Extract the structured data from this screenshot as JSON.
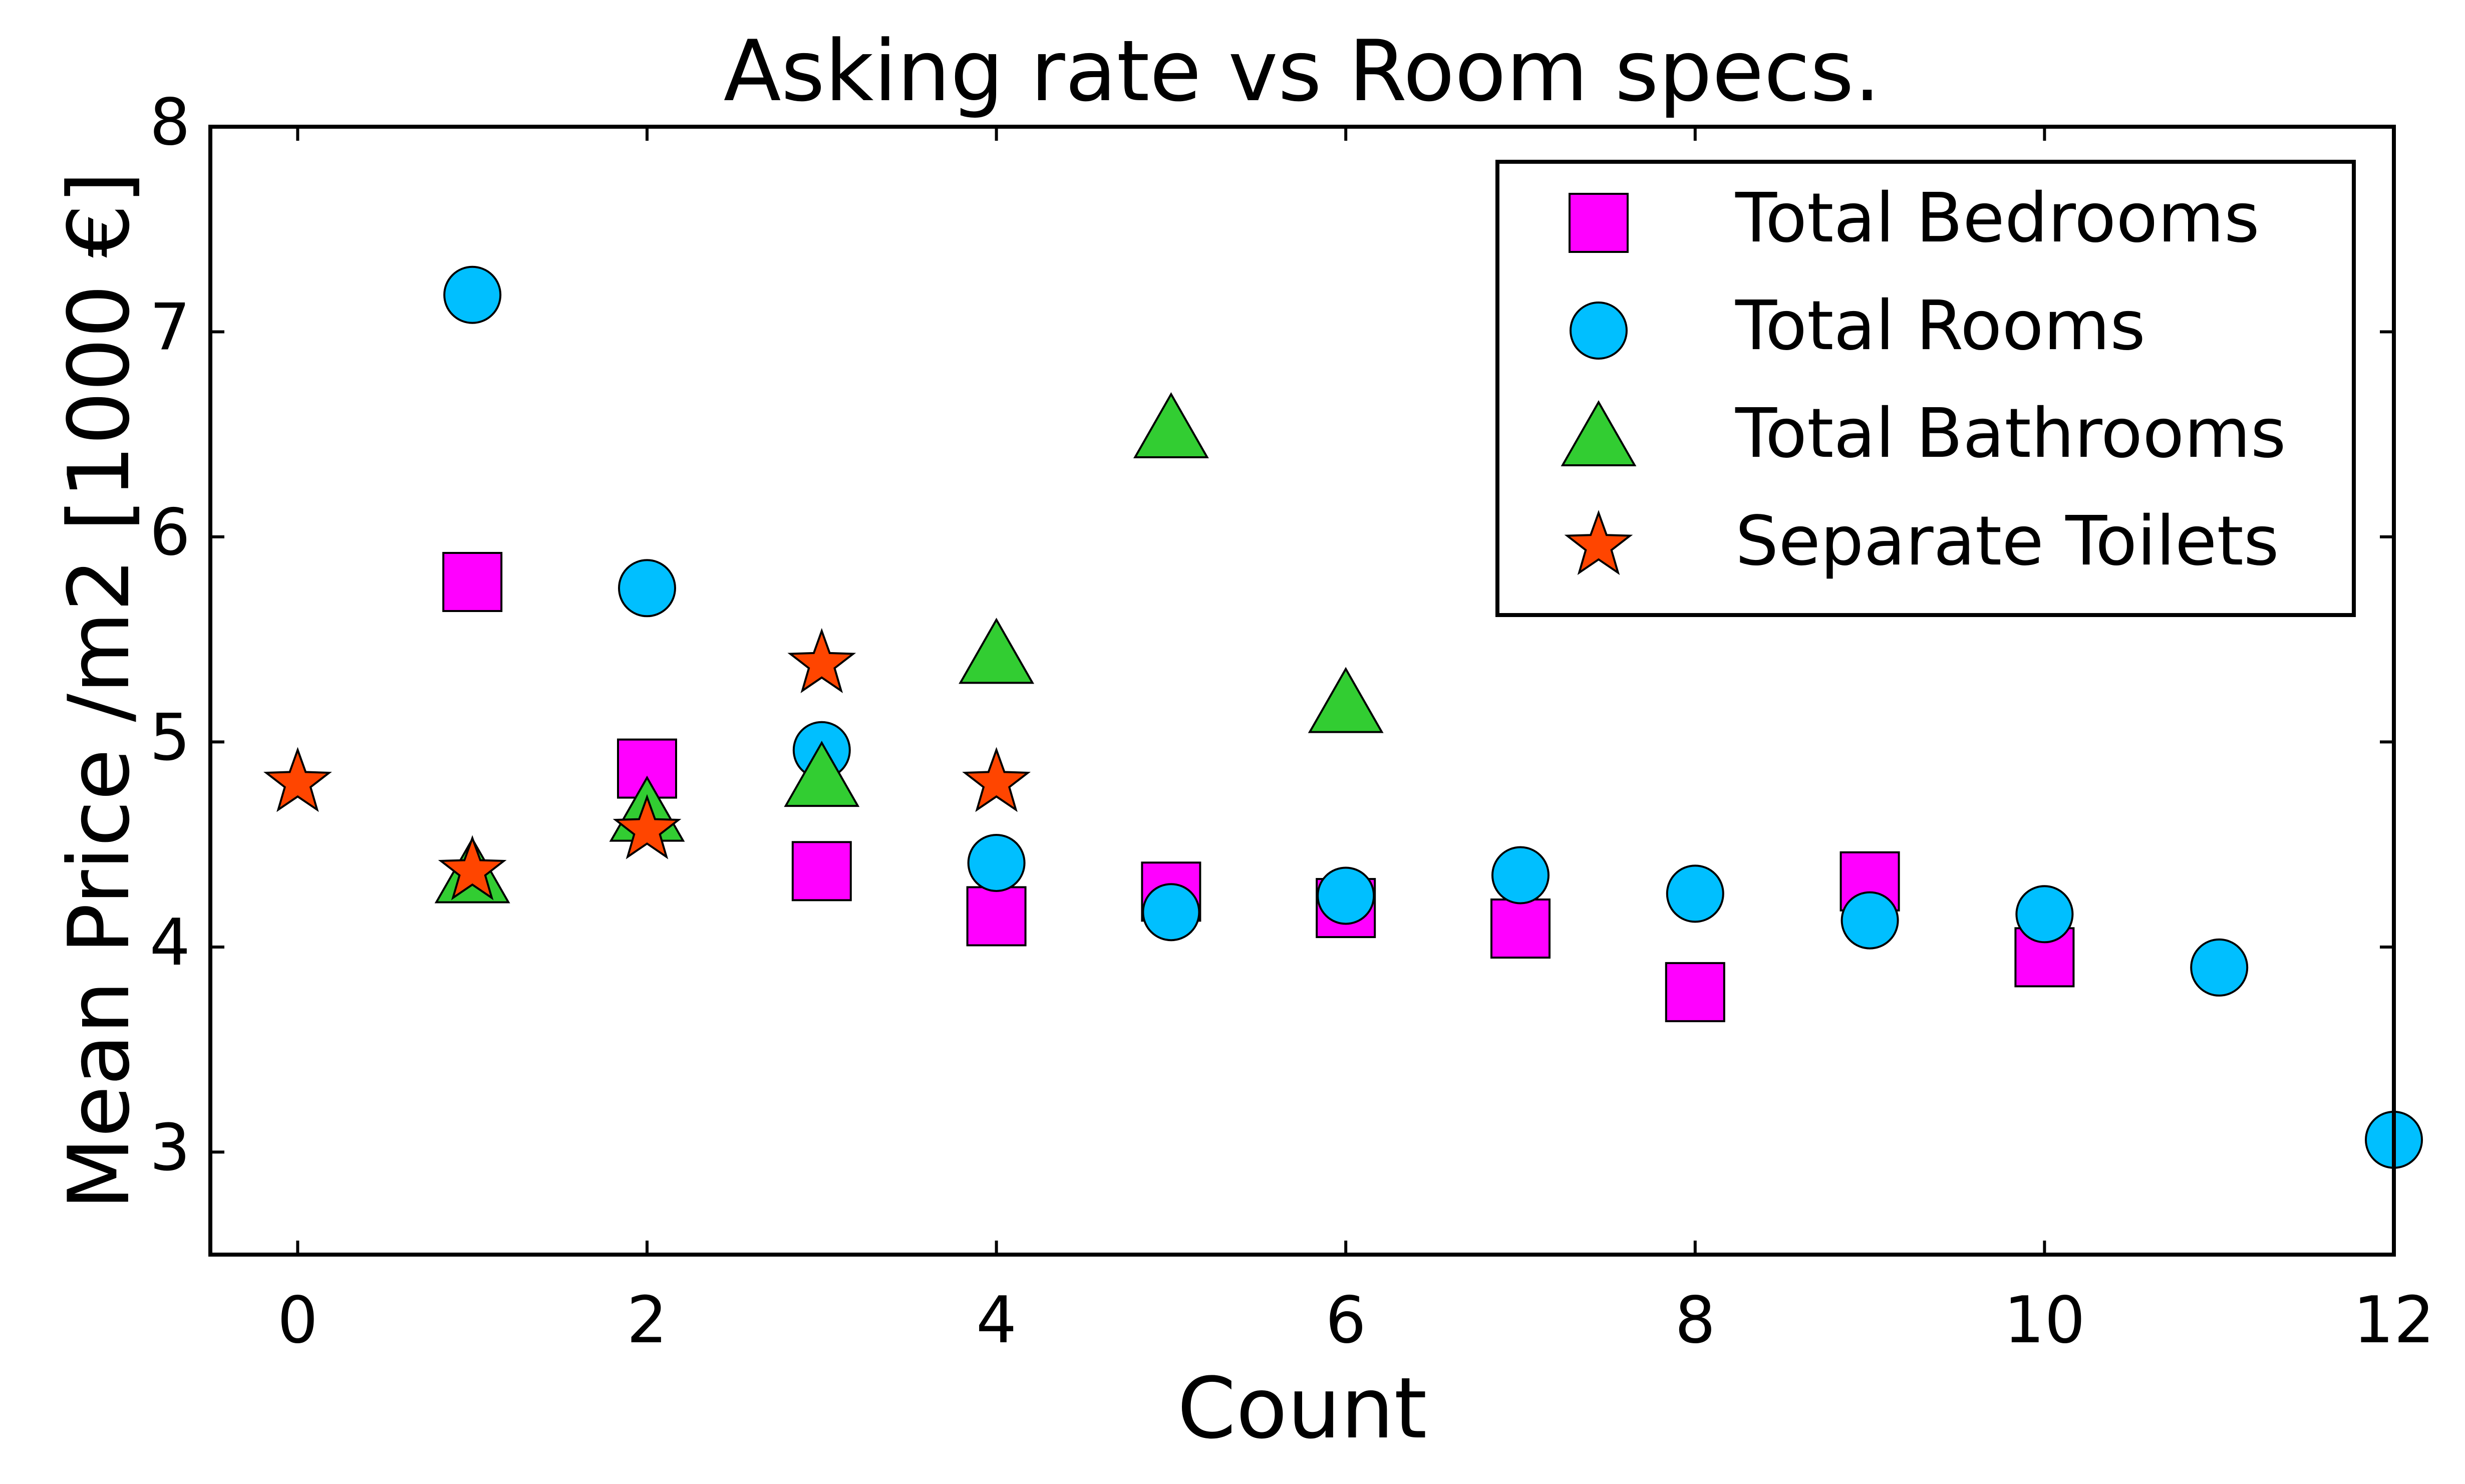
{
  "chart_data": {
    "type": "scatter",
    "title": "Asking rate vs Room specs.",
    "xlabel": "Count",
    "ylabel": "Mean Price /m2 [1000 €]",
    "xlim": [
      -0.5,
      12
    ],
    "ylim": [
      2.5,
      8
    ],
    "x_ticks": [
      0,
      2,
      4,
      6,
      8,
      10,
      12
    ],
    "y_ticks": [
      3,
      4,
      5,
      6,
      7,
      8
    ],
    "grid": false,
    "legend_position": "top-right",
    "series": [
      {
        "name": "Total Bedrooms",
        "marker": "square",
        "color": "#ff00ff",
        "x": [
          1,
          2,
          3,
          4,
          5,
          6,
          7,
          8,
          9,
          10
        ],
        "y": [
          5.78,
          4.87,
          4.37,
          4.15,
          4.27,
          4.19,
          4.09,
          3.78,
          4.32,
          3.95
        ]
      },
      {
        "name": "Total Rooms",
        "marker": "circle",
        "color": "#00bfff",
        "x": [
          1,
          2,
          3,
          4,
          5,
          6,
          7,
          8,
          9,
          10,
          11,
          12
        ],
        "y": [
          7.18,
          5.75,
          4.96,
          4.41,
          4.17,
          4.25,
          4.35,
          4.26,
          4.13,
          4.16,
          3.9,
          3.06
        ]
      },
      {
        "name": "Total Bathrooms",
        "marker": "triangle",
        "color": "#32cd32",
        "x": [
          1,
          2,
          3,
          4,
          5,
          6
        ],
        "y": [
          4.35,
          4.65,
          4.82,
          5.42,
          6.52,
          5.18
        ]
      },
      {
        "name": "Separate Toilets",
        "marker": "star",
        "color": "#ff4500",
        "x": [
          0,
          1,
          2,
          3,
          4
        ],
        "y": [
          4.8,
          4.37,
          4.57,
          5.38,
          4.8
        ]
      }
    ]
  }
}
